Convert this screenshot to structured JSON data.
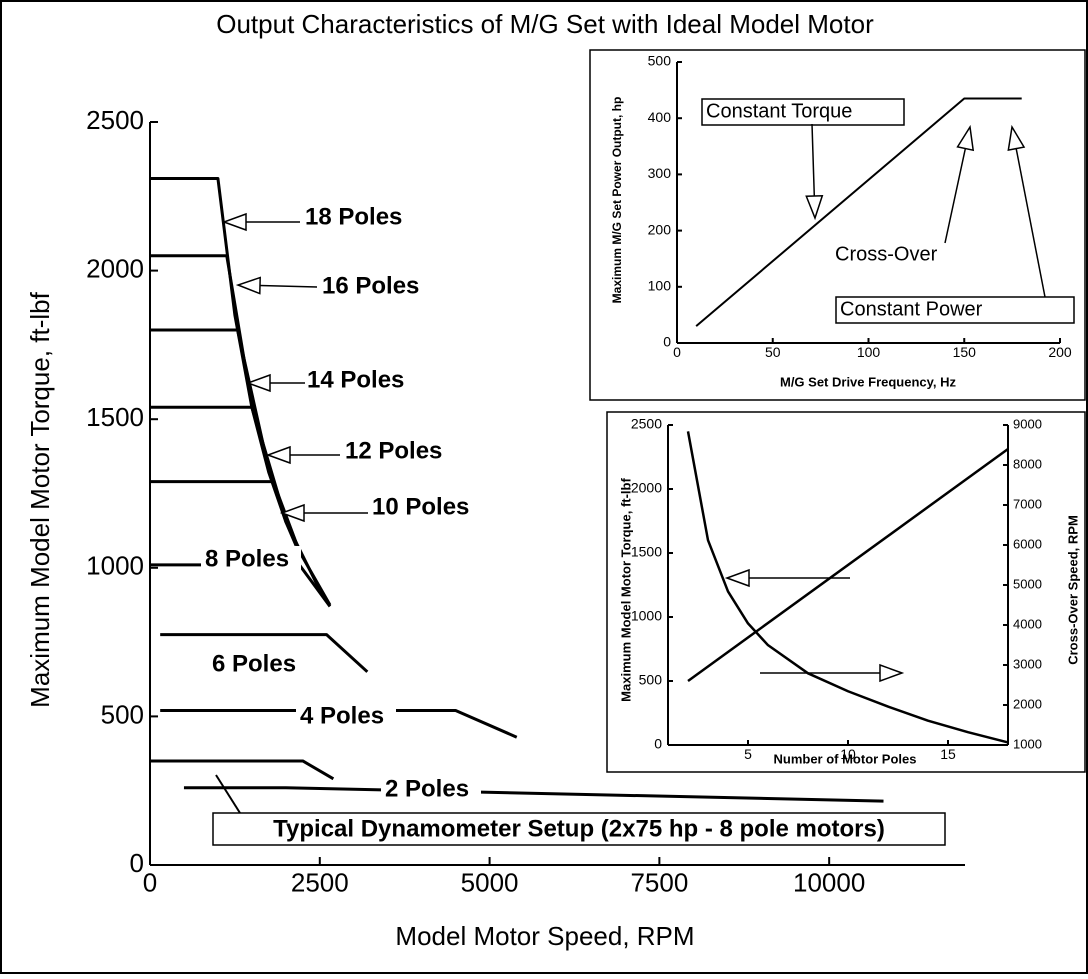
{
  "chart_data": [
    {
      "type": "line",
      "title": "Output Characteristics of M/G Set with Ideal Model Motor",
      "xlabel": "Model Motor Speed, RPM",
      "ylabel": "Maximum Model Motor Torque, ft-lbf",
      "xlim": [
        0,
        12000
      ],
      "xticks": [
        0,
        2500,
        5000,
        7500,
        10000
      ],
      "ylim": [
        0,
        2500
      ],
      "yticks": [
        0,
        500,
        1000,
        1500,
        2000,
        2500
      ],
      "series": [
        {
          "name": "18 Poles",
          "color": "#000000",
          "x": [
            0,
            1000,
            1250,
            1500,
            1750,
            2000,
            2150
          ],
          "values": [
            2310,
            2310,
            1850,
            1540,
            1320,
            1155,
            1075
          ]
        },
        {
          "name": "16 Poles",
          "color": "#000000",
          "x": [
            0,
            1130,
            1500,
            2000
          ],
          "values": [
            2050,
            2050,
            1545,
            1160
          ]
        },
        {
          "name": "14 Poles",
          "color": "#000000",
          "x": [
            0,
            1290,
            1750,
            2200
          ],
          "values": [
            1800,
            1800,
            1330,
            1055
          ]
        },
        {
          "name": "12 Poles",
          "color": "#000000",
          "x": [
            0,
            1500,
            2000,
            2500
          ],
          "values": [
            1540,
            1540,
            1155,
            925
          ]
        },
        {
          "name": "10 Poles",
          "color": "#000000",
          "x": [
            0,
            1800,
            2200,
            2650
          ],
          "values": [
            1290,
            1290,
            1055,
            875
          ]
        },
        {
          "name": "8 Poles",
          "color": "#000000",
          "x": [
            0,
            2200,
            2650
          ],
          "values": [
            1010,
            1010,
            870
          ]
        },
        {
          "name": "6 Poles",
          "color": "#000000",
          "x": [
            150,
            2600,
            3200
          ],
          "values": [
            775,
            775,
            650
          ]
        },
        {
          "name": "4 Poles",
          "color": "#000000",
          "x": [
            150,
            4500,
            5400
          ],
          "values": [
            520,
            520,
            430
          ]
        },
        {
          "name": "2 Poles",
          "color": "#000000",
          "x": [
            500,
            2000,
            10800
          ],
          "values": [
            260,
            260,
            215
          ]
        },
        {
          "name": "Typical Dynamometer Setup (2x75 hp - 8 pole motors)",
          "color": "#000000",
          "x": [
            0,
            2250,
            2700
          ],
          "values": [
            350,
            350,
            290
          ]
        }
      ]
    },
    {
      "type": "line",
      "xlabel": "M/G Set Drive Frequency, Hz",
      "ylabel": "Maximum M/G Set Power Output, hp",
      "xlim": [
        0,
        200
      ],
      "xticks": [
        0,
        50,
        100,
        150,
        200
      ],
      "ylim": [
        0,
        500
      ],
      "yticks": [
        0,
        100,
        200,
        300,
        400,
        500
      ],
      "annotations": [
        "Constant Torque",
        "Cross-Over",
        "Constant Power"
      ],
      "series": [
        {
          "color": "#000000",
          "x": [
            10,
            150,
            180
          ],
          "values": [
            30,
            435,
            435
          ]
        }
      ]
    },
    {
      "type": "line",
      "xlabel": "Number of Motor Poles",
      "ylabel": "Maximum Model Motor Torque, ft-lbf",
      "y2label": "Cross-Over Speed, RPM",
      "xlim": [
        1,
        18
      ],
      "xticks": [
        5,
        10,
        15
      ],
      "ylim": [
        0,
        2500
      ],
      "yticks": [
        0,
        500,
        1000,
        1500,
        2000,
        2500
      ],
      "y2lim": [
        1000,
        9000
      ],
      "y2ticks": [
        1000,
        2000,
        3000,
        4000,
        5000,
        6000,
        7000,
        8000,
        9000
      ],
      "series": [
        {
          "color": "#000000",
          "x": [
            2,
            3,
            4,
            5,
            6,
            8,
            10,
            12,
            14,
            16,
            18
          ],
          "values": [
            2450,
            1600,
            1200,
            950,
            780,
            560,
            420,
            300,
            190,
            100,
            20
          ]
        },
        {
          "color": "#000000",
          "axis": "y2",
          "x": [
            2,
            18
          ],
          "values": [
            2600,
            8400
          ]
        }
      ]
    }
  ]
}
